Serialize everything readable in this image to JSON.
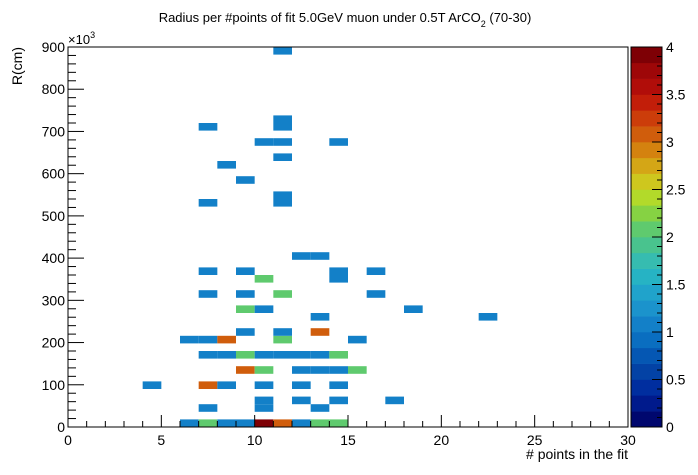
{
  "chart_data": {
    "type": "heatmap",
    "title": "Radius per #points of fit 5.0GeV muon under 0.5T ArCO",
    "title_subscript": "2",
    "title_suffix": " (70-30)",
    "xlabel": "# points in the fit",
    "ylabel": "R(cm)",
    "y_multiplier": "×10",
    "y_multiplier_exp": "3",
    "xlim": [
      0,
      30
    ],
    "ylim": [
      0,
      900
    ],
    "x_ticks": [
      "0",
      "5",
      "10",
      "15",
      "20",
      "25",
      "30"
    ],
    "y_ticks": [
      "0",
      "100",
      "200",
      "300",
      "400",
      "500",
      "600",
      "700",
      "800",
      "900"
    ],
    "x_bin_width": 1,
    "y_bin_width": 18,
    "zlim": [
      0,
      4
    ],
    "z_ticks": [
      "0",
      "0.5",
      "1",
      "1.5",
      "2",
      "2.5",
      "3",
      "3.5",
      "4"
    ],
    "palette": [
      "#00076e",
      "#001a8c",
      "#002e9f",
      "#0342a5",
      "#0557b3",
      "#0a6ec0",
      "#1380c8",
      "#1b93cc",
      "#20a3cb",
      "#26b3c4",
      "#36bcb0",
      "#49c38e",
      "#5fca6e",
      "#86d243",
      "#b2da2a",
      "#cec71e",
      "#d4a616",
      "#d4820f",
      "#d05d0c",
      "#cc3d0a",
      "#c21e09",
      "#b10d09",
      "#9e0708",
      "#7e0005"
    ],
    "cells": [
      {
        "x": 6.5,
        "y": 9,
        "z": 1
      },
      {
        "x": 7.5,
        "y": 9,
        "z": 2
      },
      {
        "x": 8.5,
        "y": 9,
        "z": 1
      },
      {
        "x": 9.5,
        "y": 9,
        "z": 1
      },
      {
        "x": 10.5,
        "y": 9,
        "z": 4
      },
      {
        "x": 11.5,
        "y": 9,
        "z": 3
      },
      {
        "x": 12.5,
        "y": 9,
        "z": 1
      },
      {
        "x": 13.5,
        "y": 9,
        "z": 2
      },
      {
        "x": 14.5,
        "y": 9,
        "z": 2
      },
      {
        "x": 7.5,
        "y": 45,
        "z": 1
      },
      {
        "x": 10.5,
        "y": 45,
        "z": 1
      },
      {
        "x": 13.5,
        "y": 45,
        "z": 1
      },
      {
        "x": 10.5,
        "y": 63,
        "z": 1
      },
      {
        "x": 12.5,
        "y": 63,
        "z": 1
      },
      {
        "x": 14.5,
        "y": 63,
        "z": 1
      },
      {
        "x": 17.5,
        "y": 63,
        "z": 1
      },
      {
        "x": 4.5,
        "y": 99,
        "z": 1
      },
      {
        "x": 7.5,
        "y": 99,
        "z": 3
      },
      {
        "x": 8.5,
        "y": 99,
        "z": 1
      },
      {
        "x": 10.5,
        "y": 99,
        "z": 1
      },
      {
        "x": 12.5,
        "y": 99,
        "z": 1
      },
      {
        "x": 14.5,
        "y": 99,
        "z": 1
      },
      {
        "x": 9.5,
        "y": 135,
        "z": 3
      },
      {
        "x": 10.5,
        "y": 135,
        "z": 2
      },
      {
        "x": 12.5,
        "y": 135,
        "z": 1
      },
      {
        "x": 13.5,
        "y": 135,
        "z": 1
      },
      {
        "x": 14.5,
        "y": 135,
        "z": 1
      },
      {
        "x": 15.5,
        "y": 135,
        "z": 2
      },
      {
        "x": 7.5,
        "y": 171,
        "z": 1
      },
      {
        "x": 8.5,
        "y": 171,
        "z": 1
      },
      {
        "x": 9.5,
        "y": 171,
        "z": 2
      },
      {
        "x": 10.5,
        "y": 171,
        "z": 1
      },
      {
        "x": 11.5,
        "y": 171,
        "z": 1
      },
      {
        "x": 12.5,
        "y": 171,
        "z": 1
      },
      {
        "x": 13.5,
        "y": 171,
        "z": 1
      },
      {
        "x": 14.5,
        "y": 171,
        "z": 2
      },
      {
        "x": 6.5,
        "y": 207,
        "z": 1
      },
      {
        "x": 7.5,
        "y": 207,
        "z": 1
      },
      {
        "x": 8.5,
        "y": 207,
        "z": 3
      },
      {
        "x": 11.5,
        "y": 207,
        "z": 2
      },
      {
        "x": 15.5,
        "y": 207,
        "z": 1
      },
      {
        "x": 9.5,
        "y": 225,
        "z": 1
      },
      {
        "x": 11.5,
        "y": 225,
        "z": 1
      },
      {
        "x": 13.5,
        "y": 225,
        "z": 3
      },
      {
        "x": 13.5,
        "y": 261,
        "z": 1
      },
      {
        "x": 22.5,
        "y": 261,
        "z": 1
      },
      {
        "x": 9.5,
        "y": 279,
        "z": 2
      },
      {
        "x": 10.5,
        "y": 279,
        "z": 1
      },
      {
        "x": 18.5,
        "y": 279,
        "z": 1
      },
      {
        "x": 7.5,
        "y": 315,
        "z": 1
      },
      {
        "x": 9.5,
        "y": 315,
        "z": 1
      },
      {
        "x": 11.5,
        "y": 315,
        "z": 2
      },
      {
        "x": 16.5,
        "y": 315,
        "z": 1
      },
      {
        "x": 10.5,
        "y": 351,
        "z": 2
      },
      {
        "x": 14.5,
        "y": 351,
        "z": 1
      },
      {
        "x": 7.5,
        "y": 369,
        "z": 1
      },
      {
        "x": 9.5,
        "y": 369,
        "z": 1
      },
      {
        "x": 14.5,
        "y": 369,
        "z": 1
      },
      {
        "x": 16.5,
        "y": 369,
        "z": 1
      },
      {
        "x": 12.5,
        "y": 405,
        "z": 1
      },
      {
        "x": 13.5,
        "y": 405,
        "z": 1
      },
      {
        "x": 7.5,
        "y": 531,
        "z": 1
      },
      {
        "x": 11.5,
        "y": 531,
        "z": 1
      },
      {
        "x": 11.5,
        "y": 549,
        "z": 1
      },
      {
        "x": 9.5,
        "y": 585,
        "z": 1
      },
      {
        "x": 8.5,
        "y": 621,
        "z": 1
      },
      {
        "x": 11.5,
        "y": 639,
        "z": 1
      },
      {
        "x": 10.5,
        "y": 675,
        "z": 1
      },
      {
        "x": 11.5,
        "y": 675,
        "z": 1
      },
      {
        "x": 14.5,
        "y": 675,
        "z": 1
      },
      {
        "x": 7.5,
        "y": 711,
        "z": 1
      },
      {
        "x": 11.5,
        "y": 711,
        "z": 1
      },
      {
        "x": 11.5,
        "y": 729,
        "z": 1
      },
      {
        "x": 11.5,
        "y": 891,
        "z": 1
      }
    ]
  }
}
